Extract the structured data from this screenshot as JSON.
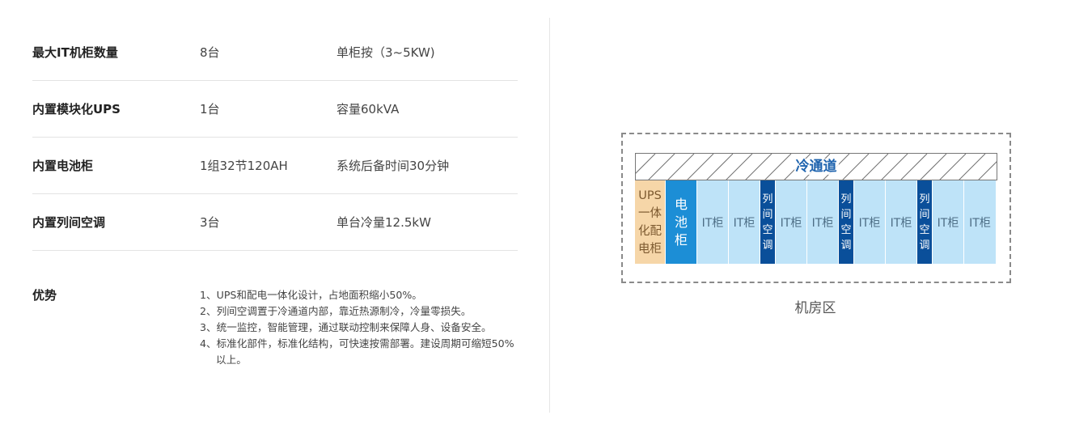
{
  "specs": [
    {
      "name": "最大IT机柜数量",
      "qty": "8台",
      "note": "单柜按（3~5KW)"
    },
    {
      "name": "内置模块化UPS",
      "qty": "1台",
      "note": "容量60kVA"
    },
    {
      "name": "内置电池柜",
      "qty": "1组32节120AH",
      "note": "系统后备时间30分钟"
    },
    {
      "name": "内置列间空调",
      "qty": "3台",
      "note": "单台冷量12.5kW"
    }
  ],
  "advantages": {
    "title": "优势",
    "items": [
      "1、UPS和配电一体化设计，占地面积缩小50%。",
      "2、列间空调置于冷通道内部，靠近热源制冷，冷量零损失。",
      "3、统一监控，智能管理，通过联动控制来保障人身、设备安全。",
      "4、标准化部件，标准化结构，可快速按需部署。建设周期可缩短50%以上。"
    ]
  },
  "diagram": {
    "cold_aisle_label": "冷通道",
    "ups_cabinet": "UPS\n一体\n化配\n电柜",
    "battery_cabinet": "电\n池\n柜",
    "it_cabinet": "IT柜",
    "row_ac": "列\n间\n空\n调",
    "room_label": "机房区",
    "colors": {
      "ups": "#f6d6a8",
      "battery": "#1c8ed6",
      "it": "#bee3f8",
      "row_ac": "#0a4f9a",
      "cold_aisle_text": "#1e63ae"
    }
  }
}
